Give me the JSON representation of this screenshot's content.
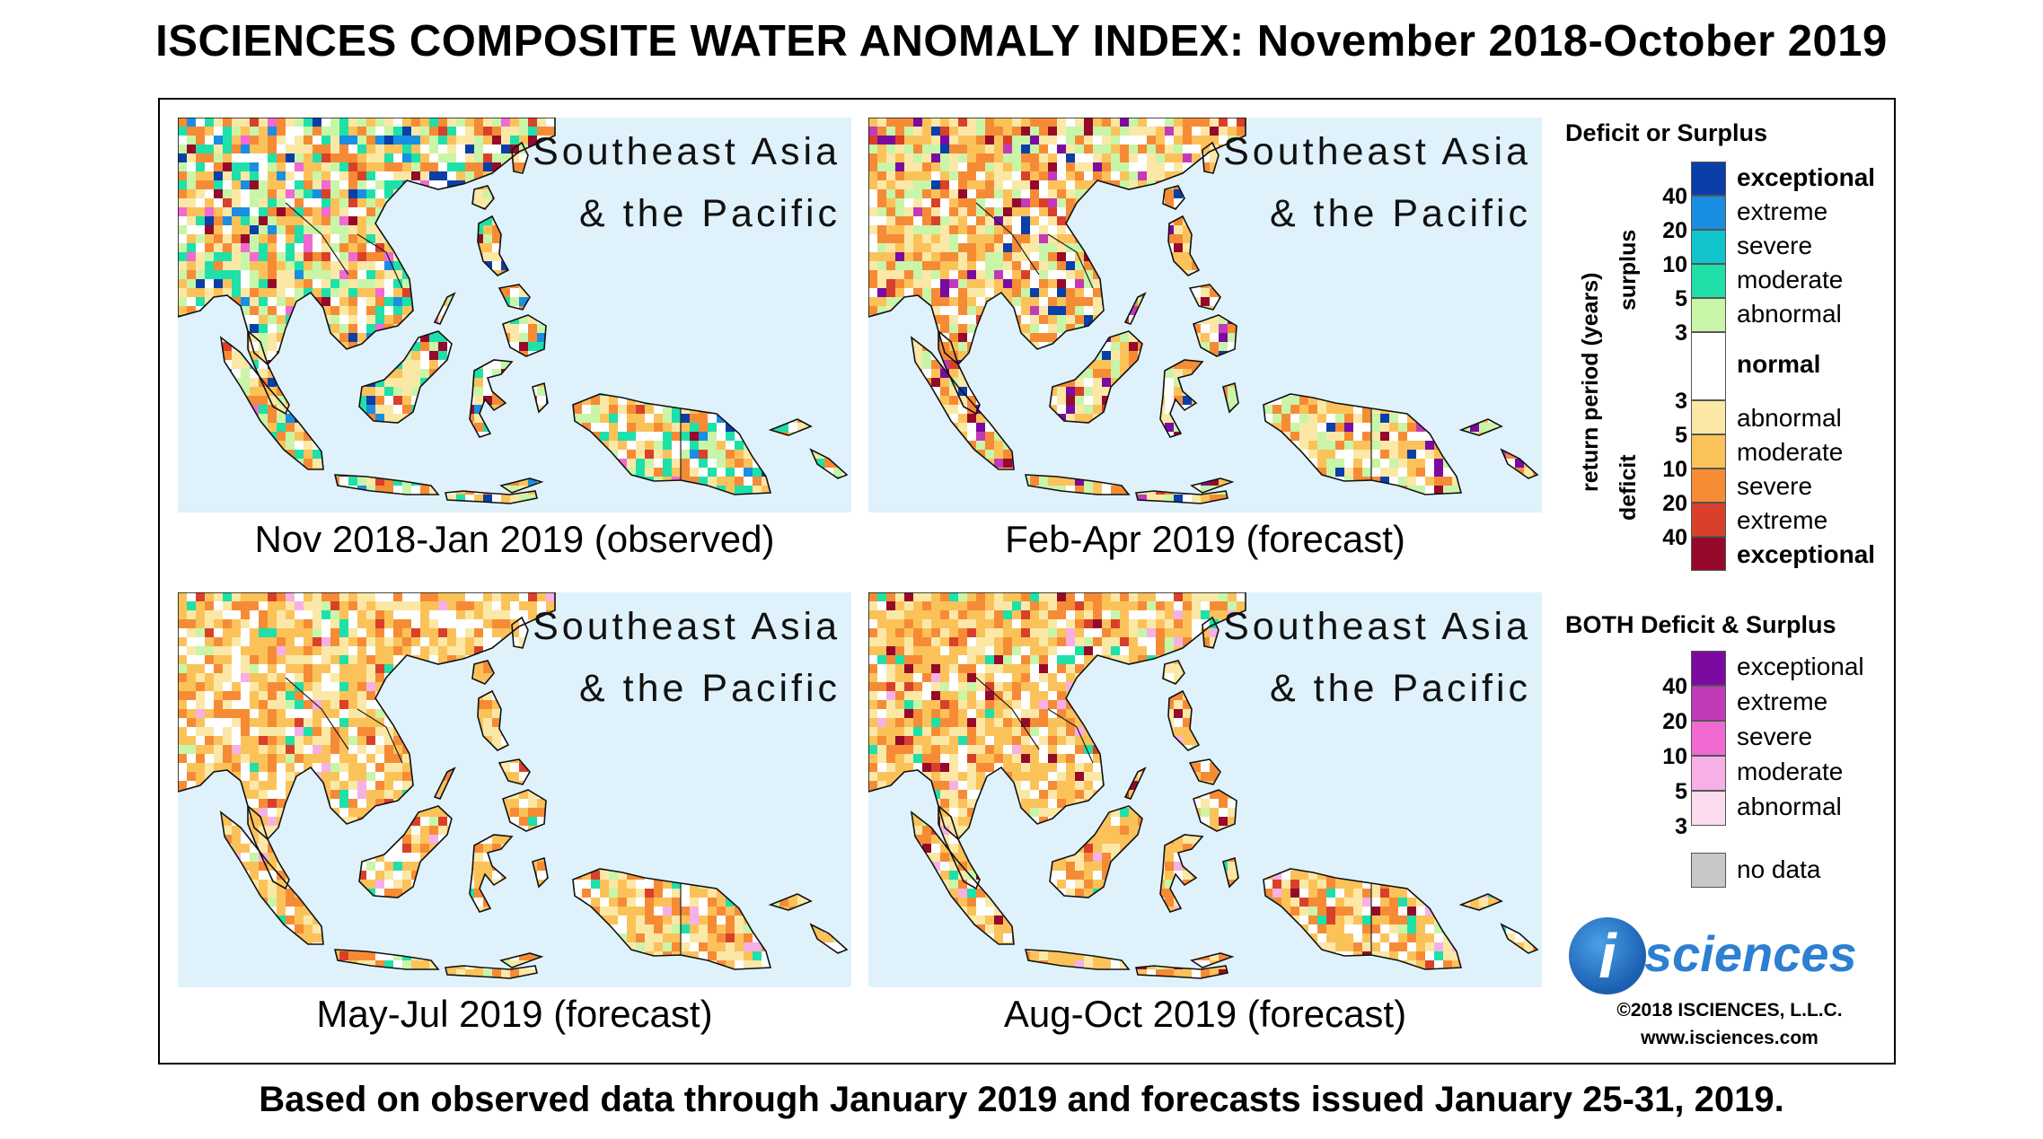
{
  "title": "ISCIENCES COMPOSITE WATER ANOMALY INDEX: November 2018-October 2019",
  "footer": "Based on observed data through January 2019 and forecasts issued January 25-31, 2019.",
  "panels": [
    {
      "region_line1": "Southeast Asia",
      "region_line2": "& the Pacific",
      "caption": "Nov 2018-Jan 2019 (observed)",
      "scheme": "obs"
    },
    {
      "region_line1": "Southeast Asia",
      "region_line2": "& the Pacific",
      "caption": "Feb-Apr 2019 (forecast)",
      "scheme": "feb"
    },
    {
      "region_line1": "Southeast Asia",
      "region_line2": "& the Pacific",
      "caption": "May-Jul 2019 (forecast)",
      "scheme": "may"
    },
    {
      "region_line1": "Southeast Asia",
      "region_line2": "& the Pacific",
      "caption": "Aug-Oct 2019 (forecast)",
      "scheme": "aug"
    }
  ],
  "legend": {
    "title": "Deficit or Surplus",
    "axis_label": "return period (years)",
    "surplus_label": "surplus",
    "deficit_label": "deficit",
    "surplus_classes": [
      {
        "label": "exceptional",
        "color": "#0a3fa8",
        "bold": true
      },
      {
        "label": "extreme",
        "color": "#1a8ee0",
        "bold": false
      },
      {
        "label": "severe",
        "color": "#11c4cc",
        "bold": false
      },
      {
        "label": "moderate",
        "color": "#1fe0a8",
        "bold": false
      },
      {
        "label": "abnormal",
        "color": "#c8f5a8",
        "bold": false
      }
    ],
    "normal": {
      "label": "normal",
      "color": "#ffffff"
    },
    "deficit_classes": [
      {
        "label": "abnormal",
        "color": "#fbe8a6",
        "bold": false
      },
      {
        "label": "moderate",
        "color": "#fbc25a",
        "bold": false
      },
      {
        "label": "severe",
        "color": "#f68b36",
        "bold": false
      },
      {
        "label": "extreme",
        "color": "#d9402a",
        "bold": false
      },
      {
        "label": "exceptional",
        "color": "#950a2a",
        "bold": true
      }
    ],
    "surplus_ticks": [
      "40",
      "20",
      "10",
      "5",
      "3"
    ],
    "deficit_ticks": [
      "3",
      "5",
      "10",
      "20",
      "40"
    ],
    "both_title": "BOTH Deficit & Surplus",
    "both_classes": [
      {
        "label": "exceptional",
        "color": "#7b0aa0"
      },
      {
        "label": "extreme",
        "color": "#c23ab8"
      },
      {
        "label": "severe",
        "color": "#f06ad2"
      },
      {
        "label": "moderate",
        "color": "#f7b0e6"
      },
      {
        "label": "abnormal",
        "color": "#fbdcef"
      }
    ],
    "both_ticks": [
      "40",
      "20",
      "10",
      "5",
      "3"
    ],
    "nodata": {
      "label": "no data",
      "color": "#c8c8c8"
    }
  },
  "logo_text": "sciences",
  "logo_letter": "i",
  "copyright": "©2018 ISCIENCES, L.L.C.",
  "website": "www.isciences.com"
}
